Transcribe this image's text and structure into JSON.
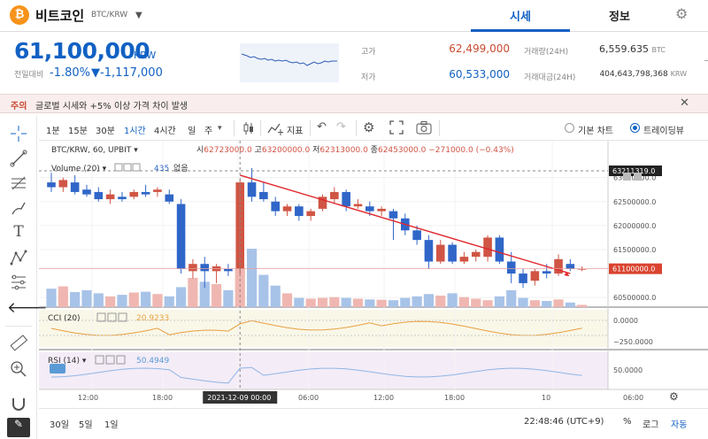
{
  "header": {
    "coin_symbol": "₿",
    "coin_name": "비트코인",
    "pair": "BTC/KRW",
    "tabs": [
      "시세",
      "정보"
    ]
  },
  "price": {
    "current": "61,100,000",
    "unit": "KRW",
    "change_label": "전일대비",
    "change_rate": "-1.80%",
    "change_amount": "▼-1,117,000"
  },
  "stats": {
    "high_label": "고가",
    "high": "62,499,000",
    "low_label": "저가",
    "low": "60,533,000",
    "volume_label": "거래량(24H)",
    "volume": "6,559.635",
    "volume_unit": "BTC",
    "value_label": "거래대금(24H)",
    "value": "404,643,798,368",
    "value_unit": "KRW"
  },
  "notice": {
    "tag": "주의",
    "text": "글로벌 시세와 +5% 이상 가격 차이 발생"
  },
  "chart_toolbar": {
    "timeframes": [
      "1분",
      "15분",
      "30분",
      "1시간",
      "4시간",
      "일",
      "주"
    ],
    "active_timeframe": "1시간",
    "indicator_label": "지표",
    "chart_modes": [
      "기본 차트",
      "트레이딩뷰"
    ],
    "active_mode": "트레이딩뷰"
  },
  "chart_data": {
    "type": "candlestick",
    "symbol_line": "BTC/KRW, 60, UPBIT",
    "ohlc_text": {
      "open_label": "시",
      "open": "62723000.0",
      "high_label": "고",
      "high": "63200000.0",
      "low_label": "저",
      "low": "62313000.0",
      "close_label": "종",
      "close": "62453000.0",
      "change": "−271000.0 (−0.43%)"
    },
    "volume_legend": "Volume (20)",
    "volume_value": "435",
    "volume_extra": "없음",
    "cci_legend": "CCI (20)",
    "cci_value": "20.9233",
    "rsi_legend": "RSI (14)",
    "rsi_value": "50.4949",
    "price_axis_ticks": [
      "63000000.0",
      "62500000.0",
      "62000000.0",
      "61500000.0",
      "60500000.0"
    ],
    "price_axis_values": [
      63000000,
      62500000,
      62000000,
      61500000,
      60500000
    ],
    "price_range": [
      60300000,
      63400000
    ],
    "crosshair_price": "63211319.0",
    "last_price_tag": "61100000.0",
    "last_price": 61100000,
    "cci_axis_ticks": [
      "0.0000",
      "−250.0000"
    ],
    "rsi_axis_ticks": [
      "50.0000"
    ],
    "time_ticks": [
      "12:00",
      "18:00",
      "06:00",
      "12:00",
      "18:00",
      "10",
      "06:00"
    ],
    "crosshair_time": "2021-12-09  00:00",
    "candles": [
      [
        62900000,
        63100000,
        62700000,
        62800000
      ],
      [
        62800000,
        63000000,
        62700000,
        62950000
      ],
      [
        62900000,
        63050000,
        62650000,
        62700000
      ],
      [
        62750000,
        62850000,
        62600000,
        62650000
      ],
      [
        62700000,
        62800000,
        62500000,
        62550000
      ],
      [
        62550000,
        62750000,
        62450000,
        62650000
      ],
      [
        62600000,
        62700000,
        62500000,
        62550000
      ],
      [
        62600000,
        62750000,
        62550000,
        62700000
      ],
      [
        62700000,
        62850000,
        62600000,
        62650000
      ],
      [
        62700000,
        62800000,
        62600000,
        62750000
      ],
      [
        62650000,
        62750000,
        62450000,
        62500000
      ],
      [
        62450000,
        62550000,
        61000000,
        61100000
      ],
      [
        61050000,
        61300000,
        60900000,
        61200000
      ],
      [
        61200000,
        61350000,
        60700000,
        61050000
      ],
      [
        61050000,
        61200000,
        60800000,
        61150000
      ],
      [
        61100000,
        61200000,
        60950000,
        61050000
      ],
      [
        61100000,
        62950000,
        61000000,
        62900000
      ],
      [
        62900000,
        63200000,
        62500000,
        62600000
      ],
      [
        62700000,
        62900000,
        62500000,
        62550000
      ],
      [
        62500000,
        62600000,
        62200000,
        62300000
      ],
      [
        62300000,
        62450000,
        62200000,
        62400000
      ],
      [
        62400000,
        62450000,
        62100000,
        62200000
      ],
      [
        62200000,
        62350000,
        62100000,
        62300000
      ],
      [
        62350000,
        62650000,
        62300000,
        62600000
      ],
      [
        62550000,
        62800000,
        62450000,
        62700000
      ],
      [
        62700000,
        62750000,
        62300000,
        62400000
      ],
      [
        62400000,
        62550000,
        62350000,
        62450000
      ],
      [
        62400000,
        62500000,
        62200000,
        62300000
      ],
      [
        62300000,
        62400000,
        62200000,
        62350000
      ],
      [
        62300000,
        62350000,
        61700000,
        62150000
      ],
      [
        62150000,
        62250000,
        61800000,
        61900000
      ],
      [
        61900000,
        62000000,
        61600000,
        61700000
      ],
      [
        61700000,
        61800000,
        61100000,
        61250000
      ],
      [
        61250000,
        61700000,
        61200000,
        61600000
      ],
      [
        61600000,
        61650000,
        61200000,
        61250000
      ],
      [
        61250000,
        61450000,
        61200000,
        61350000
      ],
      [
        61350000,
        61500000,
        61250000,
        61450000
      ],
      [
        61350000,
        61800000,
        61250000,
        61750000
      ],
      [
        61750000,
        61800000,
        61200000,
        61250000
      ],
      [
        61250000,
        61450000,
        60800000,
        61000000
      ],
      [
        61000000,
        61100000,
        60700000,
        60800000
      ],
      [
        60850000,
        61100000,
        60750000,
        61050000
      ],
      [
        61050000,
        61200000,
        60900000,
        61000000
      ],
      [
        61000000,
        61400000,
        60950000,
        61300000
      ],
      [
        61200000,
        61300000,
        61050000,
        61100000
      ],
      [
        61100000,
        61150000,
        61050000,
        61100000
      ]
    ],
    "volumes": [
      120,
      135,
      98,
      110,
      90,
      70,
      80,
      95,
      100,
      85,
      70,
      130,
      190,
      165,
      150,
      110,
      250,
      380,
      210,
      140,
      90,
      60,
      55,
      60,
      65,
      60,
      55,
      50,
      48,
      45,
      60,
      70,
      85,
      75,
      90,
      65,
      55,
      45,
      70,
      110,
      60,
      45,
      40,
      50,
      30,
      15
    ],
    "trendline_price_start": 63050000,
    "trendline_price_end": 61000000
  },
  "bottom_bar": {
    "ranges": [
      "30일",
      "5일",
      "1일"
    ],
    "clock": "22:48:46 (UTC+9)",
    "toggles": [
      "%",
      "로그",
      "자동"
    ]
  }
}
